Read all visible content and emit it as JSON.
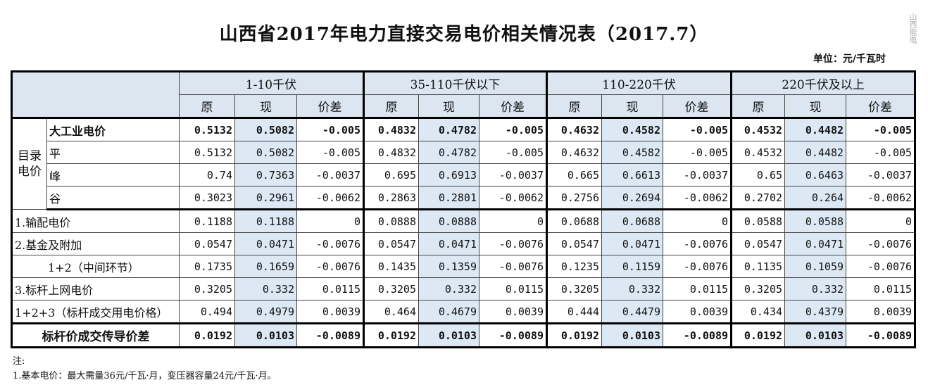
{
  "title": "山西省2017年电力直接交易电价相关情况表（2017.7）",
  "unit": "单位：元/千瓦时",
  "watermark": "山西能电",
  "table": {
    "groups": [
      "1-10千伏",
      "35-110千伏以下",
      "110-220千伏",
      "220千伏及以上"
    ],
    "subheaders": [
      "原",
      "现",
      "价差"
    ],
    "catalog_label": "目录电价",
    "catalog_rows": [
      {
        "label": "大工业电价",
        "values": [
          0.5132,
          0.5082,
          -0.005,
          0.4832,
          0.4782,
          -0.005,
          0.4632,
          0.4582,
          -0.005,
          0.4532,
          0.4482,
          -0.005
        ]
      },
      {
        "label": "平",
        "values": [
          0.5132,
          0.5082,
          -0.005,
          0.4832,
          0.4782,
          -0.005,
          0.4632,
          0.4582,
          -0.005,
          0.4532,
          0.4482,
          -0.005
        ]
      },
      {
        "label": "峰",
        "values": [
          0.74,
          0.7363,
          -0.0037,
          0.695,
          0.6913,
          -0.0037,
          0.665,
          0.6613,
          -0.0037,
          0.65,
          0.6463,
          -0.0037
        ]
      },
      {
        "label": "谷",
        "values": [
          0.3023,
          0.2961,
          -0.0062,
          0.2863,
          0.2801,
          -0.0062,
          0.2756,
          0.2694,
          -0.0062,
          0.2702,
          0.264,
          -0.0062
        ]
      }
    ],
    "rows": [
      {
        "label": "1.输配电价",
        "values": [
          0.1188,
          0.1188,
          0,
          0.0888,
          0.0888,
          0,
          0.0688,
          0.0688,
          0,
          0.0588,
          0.0588,
          0
        ]
      },
      {
        "label": "2.基金及附加",
        "values": [
          0.0547,
          0.0471,
          -0.0076,
          0.0547,
          0.0471,
          -0.0076,
          0.0547,
          0.0471,
          -0.0076,
          0.0547,
          0.0471,
          -0.0076
        ]
      },
      {
        "label": "1+2（中间环节）",
        "values": [
          0.1735,
          0.1659,
          -0.0076,
          0.1435,
          0.1359,
          -0.0076,
          0.1235,
          0.1159,
          -0.0076,
          0.1135,
          0.1059,
          -0.0076
        ]
      },
      {
        "label": "3.标杆上网电价",
        "values": [
          0.3205,
          0.332,
          0.0115,
          0.3205,
          0.332,
          0.0115,
          0.3205,
          0.332,
          0.0115,
          0.3205,
          0.332,
          0.0115
        ]
      },
      {
        "label": "1+2+3（标杆成交用电价格）",
        "values": [
          0.494,
          0.4979,
          0.0039,
          0.464,
          0.4679,
          0.0039,
          0.444,
          0.4479,
          0.0039,
          0.434,
          0.4379,
          0.0039
        ]
      },
      {
        "label": "标杆价成交传导价差",
        "values": [
          0.0192,
          0.0103,
          -0.0089,
          0.0192,
          0.0103,
          -0.0089,
          0.0192,
          0.0103,
          -0.0089,
          0.0192,
          0.0103,
          -0.0089
        ]
      }
    ]
  },
  "notes": [
    "注:",
    "1.基本电价：最大需量36元/千瓦·月，变压器容量24元/千瓦·月。"
  ]
}
